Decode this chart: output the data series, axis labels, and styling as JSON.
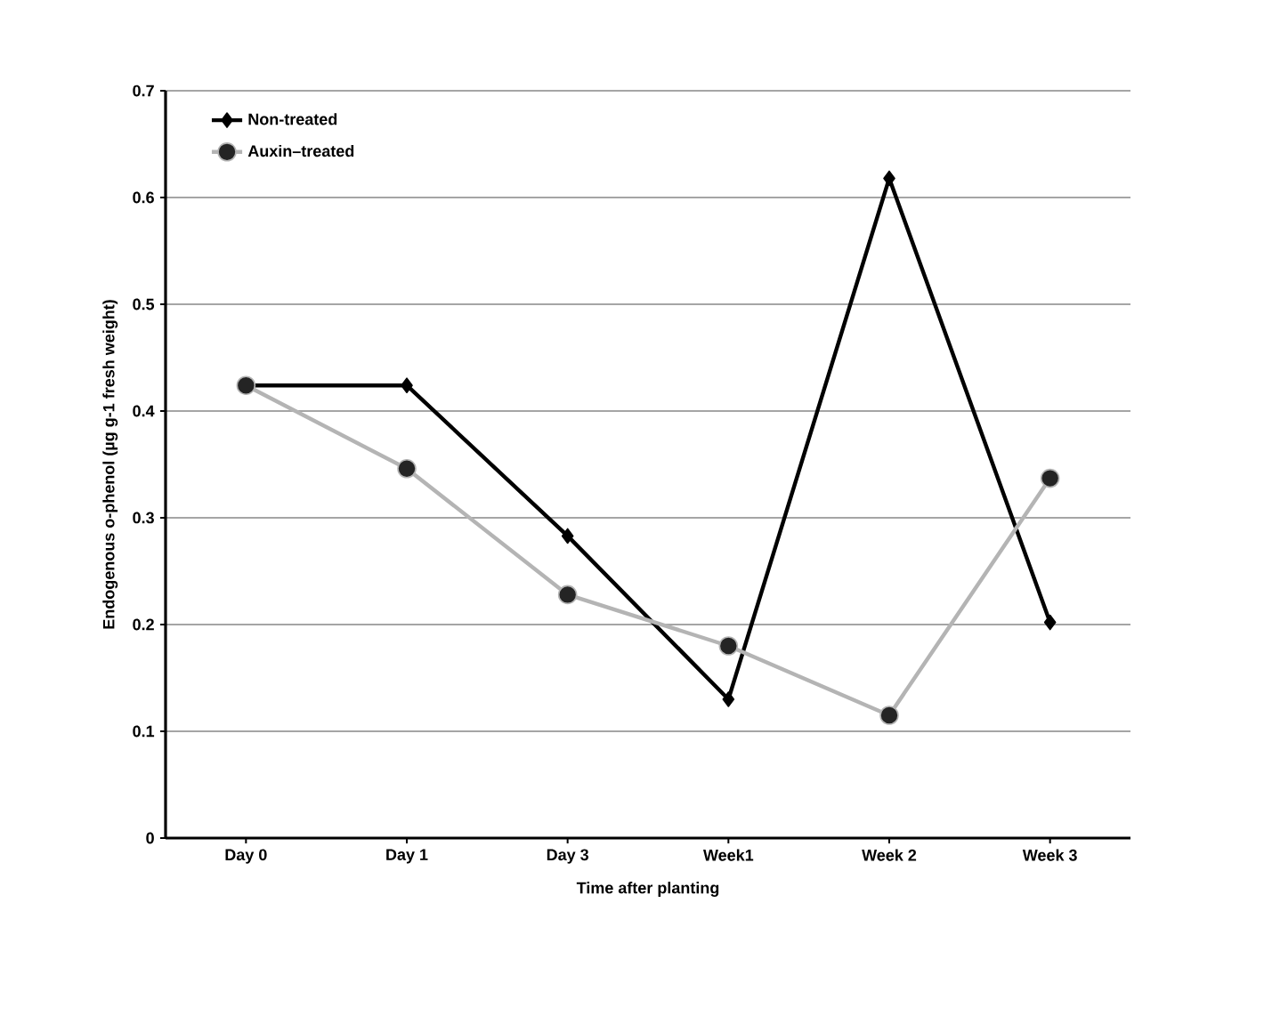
{
  "chart_data": {
    "type": "line",
    "xlabel": "Time after planting",
    "ylabel": "Endogenous o-phenol (µg g-1 fresh weight)",
    "categories": [
      "Day 0",
      "Day 1",
      "Day 3",
      "Week1",
      "Week 2",
      "Week 3"
    ],
    "series": [
      {
        "name": "Non-treated",
        "color": "#000000",
        "marker": "diamond",
        "values": [
          0.424,
          0.424,
          0.283,
          0.13,
          0.618,
          0.202
        ]
      },
      {
        "name": "Auxin–treated",
        "color": "#b4b4b4",
        "marker": "circle",
        "values": [
          0.424,
          0.346,
          0.228,
          0.18,
          0.115,
          0.337
        ]
      }
    ],
    "ylim": [
      0,
      0.7
    ],
    "yticks": [
      0,
      0.1,
      0.2,
      0.3,
      0.4,
      0.5,
      0.6,
      0.7
    ],
    "grid": "y",
    "legend": "top left"
  }
}
